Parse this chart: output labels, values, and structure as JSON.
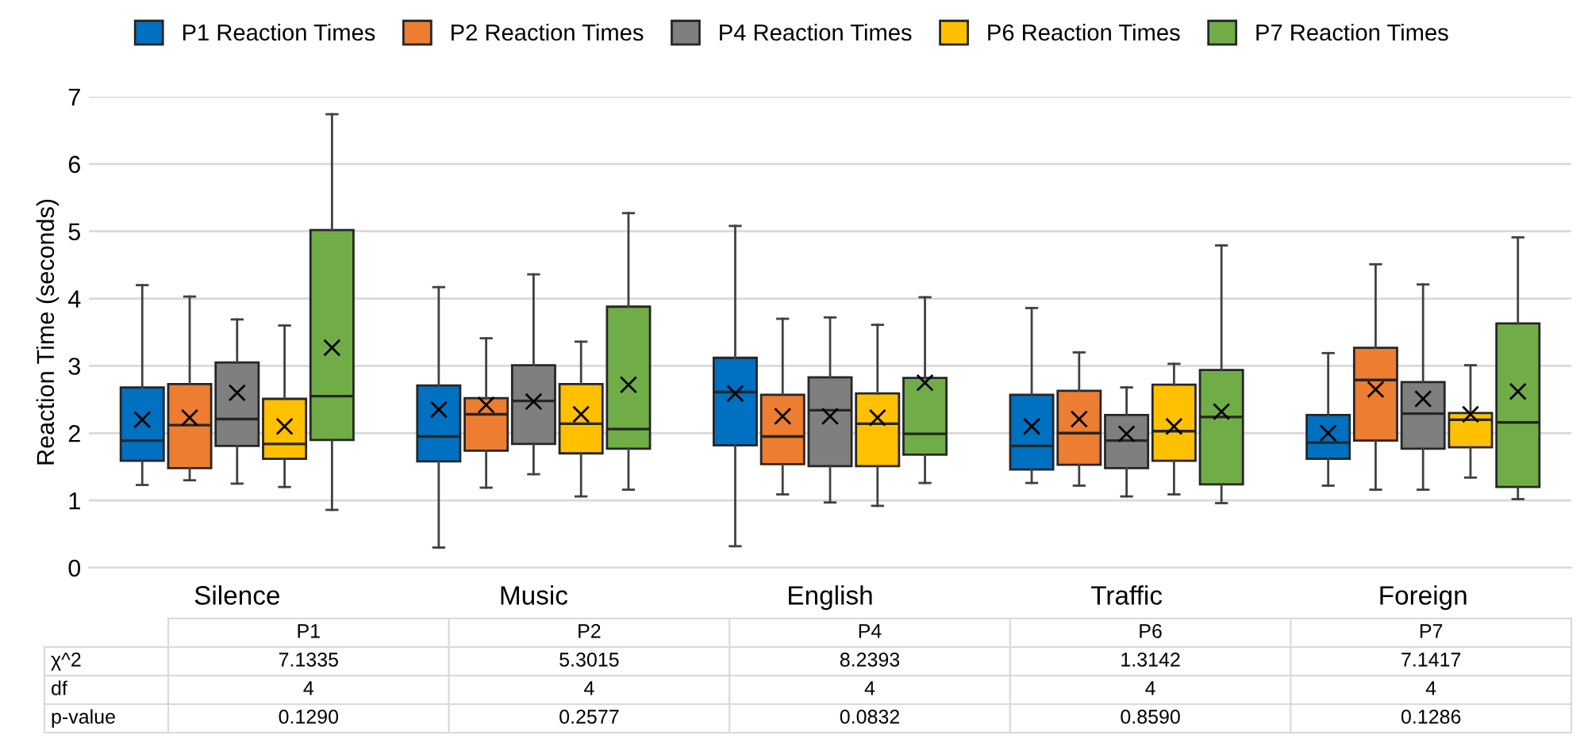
{
  "chart_data": {
    "type": "box",
    "ylabel": "Reaction Time (seconds)",
    "categories": [
      "Silence",
      "Music",
      "English",
      "Traffic",
      "Foreign"
    ],
    "ylim": [
      0,
      7
    ],
    "yticks": [
      0,
      1,
      2,
      3,
      4,
      5,
      6,
      7
    ],
    "grid": "y",
    "legend": "top",
    "marker": "cross",
    "series": [
      {
        "name": "P1 Reaction Times",
        "color": "#0070c0",
        "boxes": [
          {
            "low": 1.23,
            "q1": 1.59,
            "median": 1.89,
            "q3": 2.68,
            "high": 4.2,
            "mean": 2.2
          },
          {
            "low": 0.3,
            "q1": 1.58,
            "median": 1.95,
            "q3": 2.71,
            "high": 4.17,
            "mean": 2.35
          },
          {
            "low": 0.32,
            "q1": 1.82,
            "median": 2.61,
            "q3": 3.12,
            "high": 5.08,
            "mean": 2.59
          },
          {
            "low": 1.26,
            "q1": 1.46,
            "median": 1.81,
            "q3": 2.57,
            "high": 3.86,
            "mean": 2.1
          },
          {
            "low": 1.22,
            "q1": 1.62,
            "median": 1.86,
            "q3": 2.27,
            "high": 3.19,
            "mean": 2.0
          }
        ]
      },
      {
        "name": "P2 Reaction Times",
        "color": "#ed7d31",
        "boxes": [
          {
            "low": 1.3,
            "q1": 1.48,
            "median": 2.12,
            "q3": 2.73,
            "high": 4.03,
            "mean": 2.23
          },
          {
            "low": 1.19,
            "q1": 1.74,
            "median": 2.28,
            "q3": 2.52,
            "high": 3.41,
            "mean": 2.42
          },
          {
            "low": 1.09,
            "q1": 1.54,
            "median": 1.95,
            "q3": 2.57,
            "high": 3.7,
            "mean": 2.25
          },
          {
            "low": 1.22,
            "q1": 1.53,
            "median": 2.0,
            "q3": 2.63,
            "high": 3.2,
            "mean": 2.21
          },
          {
            "low": 1.16,
            "q1": 1.89,
            "median": 2.79,
            "q3": 3.27,
            "high": 4.51,
            "mean": 2.65
          }
        ]
      },
      {
        "name": "P4 Reaction Times",
        "color": "#7f7f7f",
        "boxes": [
          {
            "low": 1.25,
            "q1": 1.81,
            "median": 2.21,
            "q3": 3.05,
            "high": 3.69,
            "mean": 2.6
          },
          {
            "low": 1.39,
            "q1": 1.84,
            "median": 2.48,
            "q3": 3.01,
            "high": 4.36,
            "mean": 2.47
          },
          {
            "low": 0.97,
            "q1": 1.51,
            "median": 2.34,
            "q3": 2.83,
            "high": 3.72,
            "mean": 2.25
          },
          {
            "low": 1.06,
            "q1": 1.48,
            "median": 1.89,
            "q3": 2.27,
            "high": 2.68,
            "mean": 1.99
          },
          {
            "low": 1.16,
            "q1": 1.77,
            "median": 2.29,
            "q3": 2.76,
            "high": 4.21,
            "mean": 2.51
          }
        ]
      },
      {
        "name": "P6 Reaction Times",
        "color": "#ffc000",
        "boxes": [
          {
            "low": 1.2,
            "q1": 1.62,
            "median": 1.84,
            "q3": 2.51,
            "high": 3.6,
            "mean": 2.1
          },
          {
            "low": 1.06,
            "q1": 1.7,
            "median": 2.14,
            "q3": 2.73,
            "high": 3.36,
            "mean": 2.28
          },
          {
            "low": 0.92,
            "q1": 1.51,
            "median": 2.14,
            "q3": 2.59,
            "high": 3.61,
            "mean": 2.23
          },
          {
            "low": 1.09,
            "q1": 1.59,
            "median": 2.03,
            "q3": 2.72,
            "high": 3.03,
            "mean": 2.1
          },
          {
            "low": 1.34,
            "q1": 1.79,
            "median": 2.2,
            "q3": 2.3,
            "high": 3.01,
            "mean": 2.28
          }
        ]
      },
      {
        "name": "P7 Reaction Times",
        "color": "#70ad47",
        "boxes": [
          {
            "low": 0.86,
            "q1": 1.9,
            "median": 2.55,
            "q3": 5.02,
            "high": 6.74,
            "mean": 3.27
          },
          {
            "low": 1.16,
            "q1": 1.77,
            "median": 2.06,
            "q3": 3.88,
            "high": 5.27,
            "mean": 2.72
          },
          {
            "low": 1.26,
            "q1": 1.68,
            "median": 1.99,
            "q3": 2.82,
            "high": 4.02,
            "mean": 2.75
          },
          {
            "low": 0.96,
            "q1": 1.24,
            "median": 2.24,
            "q3": 2.94,
            "high": 4.79,
            "mean": 2.32
          },
          {
            "low": 1.02,
            "q1": 1.2,
            "median": 2.16,
            "q3": 3.63,
            "high": 4.91,
            "mean": 2.62
          }
        ]
      }
    ],
    "annotations": [
      "P1",
      "P2",
      "P4",
      "P6",
      "P7",
      "χ^2",
      "7.1335",
      "5.3015",
      "8.2393",
      "1.3142",
      "7.1417",
      "df",
      "4",
      "4",
      "4",
      "4",
      "4",
      "p-value",
      "0.1290",
      "0.2577",
      "0.0832",
      "0.8590",
      "0.1286"
    ]
  }
}
